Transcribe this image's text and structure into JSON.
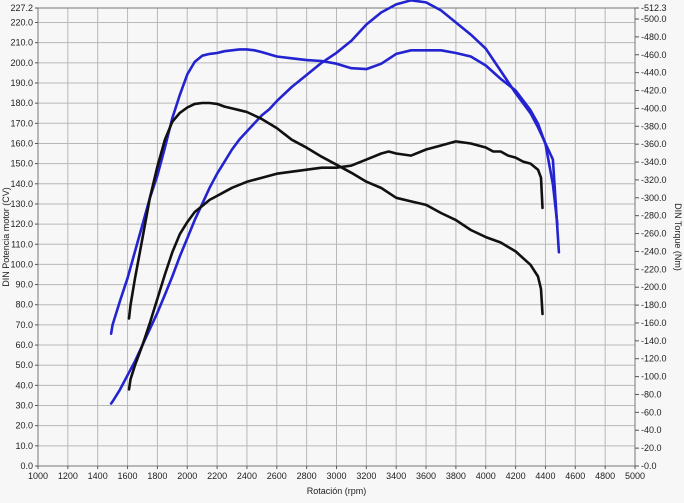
{
  "chart_data": {
    "type": "line",
    "title": "",
    "xlabel": "Rotación (rpm)",
    "ylabel": "DIN Potencia motor (CV)",
    "y2label": "DIN Torque (Nm)",
    "xlim": [
      1000,
      5000
    ],
    "ylim": [
      0,
      227.2
    ],
    "y2lim": [
      0,
      512.3
    ],
    "grid": true,
    "x_ticks": [
      1000,
      1200,
      1400,
      1600,
      1800,
      2000,
      2200,
      2400,
      2600,
      2800,
      3000,
      3200,
      3400,
      3600,
      3800,
      4000,
      4200,
      4400,
      4600,
      4800,
      5000
    ],
    "y_ticks": [
      0,
      10,
      20,
      30,
      40,
      50,
      60,
      70,
      80,
      90,
      100,
      110,
      120,
      130,
      140,
      150,
      160,
      170,
      180,
      190,
      200,
      210,
      220,
      227.2
    ],
    "y2_ticks": [
      0,
      20,
      40,
      60,
      80,
      100,
      120,
      140,
      160,
      180,
      200,
      220,
      240,
      260,
      280,
      300,
      320,
      340,
      360,
      380,
      400,
      420,
      440,
      460,
      480,
      500,
      512.3
    ],
    "colors": {
      "blue": "#2323d0",
      "black": "#111111",
      "grid": "#b8b8b8",
      "background": "#f7f7f7"
    },
    "series": [
      {
        "color": "blue",
        "axis": "left",
        "role": "power",
        "x": [
          1490,
          1500,
          1550,
          1600,
          1650,
          1700,
          1750,
          1800,
          1850,
          1900,
          1950,
          2000,
          2050,
          2100,
          2150,
          2200,
          2250,
          2300,
          2350,
          2400,
          2450,
          2500,
          2550,
          2600,
          2700,
          2800,
          2900,
          3000,
          3100,
          3200,
          3300,
          3400,
          3500,
          3600,
          3700,
          3800,
          3900,
          4000,
          4100,
          4200,
          4300,
          4350,
          4400,
          4450,
          4490
        ],
        "y": [
          31,
          32,
          38,
          45,
          52,
          60,
          68,
          76,
          85,
          94,
          104,
          113,
          122,
          130,
          138,
          145,
          151,
          157,
          162,
          166,
          170,
          174,
          177,
          181,
          188,
          194,
          200,
          205,
          211,
          219,
          225,
          229,
          231,
          230,
          226,
          220,
          214,
          207,
          196,
          185,
          175,
          168,
          160,
          152,
          106
        ]
      },
      {
        "color": "blue",
        "axis": "right",
        "role": "torque",
        "x": [
          1490,
          1500,
          1550,
          1600,
          1650,
          1700,
          1750,
          1800,
          1850,
          1900,
          1950,
          2000,
          2050,
          2100,
          2150,
          2200,
          2250,
          2300,
          2350,
          2400,
          2450,
          2500,
          2600,
          2700,
          2800,
          2900,
          3000,
          3100,
          3200,
          3300,
          3400,
          3500,
          3600,
          3700,
          3800,
          3900,
          4000,
          4100,
          4200,
          4300,
          4350,
          4400,
          4450,
          4480
        ],
        "y": [
          148,
          158,
          185,
          210,
          240,
          270,
          300,
          325,
          356,
          389,
          415,
          438,
          452,
          459,
          461,
          462,
          464,
          465,
          466,
          466,
          465,
          463,
          458,
          456,
          454,
          453,
          450,
          445,
          444,
          450,
          461,
          465,
          465,
          465,
          462,
          458,
          448,
          433,
          420,
          398,
          383,
          360,
          315,
          270
        ]
      },
      {
        "color": "black",
        "axis": "left",
        "role": "power",
        "x": [
          1610,
          1620,
          1650,
          1700,
          1750,
          1800,
          1850,
          1900,
          1950,
          2000,
          2050,
          2100,
          2150,
          2200,
          2250,
          2300,
          2400,
          2500,
          2600,
          2700,
          2800,
          2900,
          3000,
          3100,
          3200,
          3300,
          3350,
          3400,
          3500,
          3600,
          3700,
          3800,
          3900,
          4000,
          4050,
          4100,
          4150,
          4200,
          4250,
          4300,
          4350,
          4370,
          4380
        ],
        "y": [
          38,
          43,
          50,
          60,
          71,
          83,
          95,
          106,
          115,
          121,
          126,
          129,
          132,
          134,
          136,
          138,
          141,
          143,
          145,
          146,
          147,
          148,
          148,
          149,
          152,
          155,
          156,
          155,
          154,
          157,
          159,
          161,
          160,
          158,
          156,
          156,
          154,
          153,
          151,
          150,
          147,
          143,
          128
        ]
      },
      {
        "color": "black",
        "axis": "right",
        "role": "torque",
        "x": [
          1610,
          1620,
          1650,
          1700,
          1750,
          1800,
          1850,
          1900,
          1950,
          2000,
          2050,
          2100,
          2150,
          2200,
          2250,
          2300,
          2350,
          2400,
          2450,
          2500,
          2600,
          2700,
          2800,
          2900,
          3000,
          3100,
          3200,
          3300,
          3400,
          3500,
          3600,
          3700,
          3800,
          3900,
          4000,
          4100,
          4200,
          4300,
          4350,
          4370,
          4380
        ],
        "y": [
          165,
          180,
          210,
          255,
          300,
          335,
          365,
          385,
          395,
          401,
          405,
          406,
          406,
          405,
          402,
          400,
          398,
          396,
          392,
          388,
          378,
          365,
          356,
          346,
          337,
          328,
          318,
          311,
          300,
          296,
          292,
          283,
          275,
          264,
          256,
          250,
          240,
          225,
          212,
          198,
          170
        ]
      }
    ]
  }
}
